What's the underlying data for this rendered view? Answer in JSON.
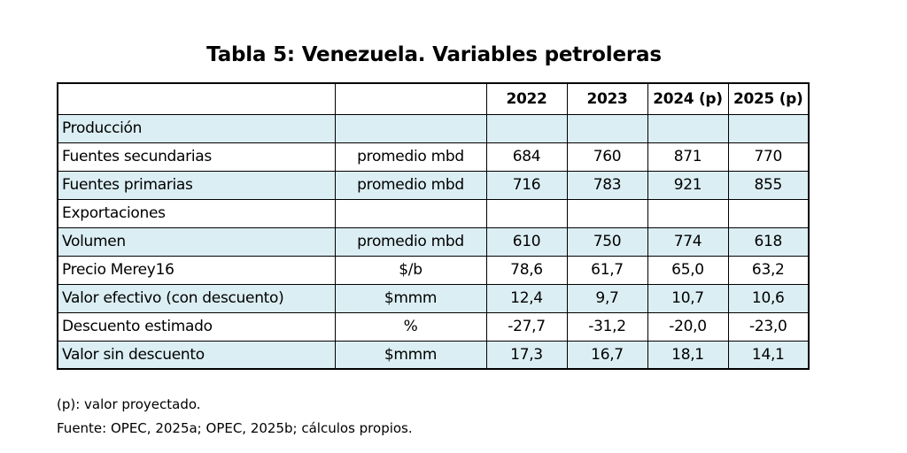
{
  "title": "Tabla 5: Venezuela. Variables petroleras",
  "table": {
    "columns": [
      "",
      "",
      "2022",
      "2023",
      "2024 (p)",
      "2025 (p)"
    ],
    "rows": [
      {
        "label": "Producción",
        "unit": "",
        "values": [
          "",
          "",
          "",
          ""
        ],
        "shaded": true
      },
      {
        "label": "Fuentes secundarias",
        "unit": "promedio mbd",
        "values": [
          "684",
          "760",
          "871",
          "770"
        ],
        "shaded": false
      },
      {
        "label": "Fuentes primarias",
        "unit": "promedio mbd",
        "values": [
          "716",
          "783",
          "921",
          "855"
        ],
        "shaded": true
      },
      {
        "label": "Exportaciones",
        "unit": "",
        "values": [
          "",
          "",
          "",
          ""
        ],
        "shaded": false
      },
      {
        "label": "Volumen",
        "unit": "promedio mbd",
        "values": [
          "610",
          "750",
          "774",
          "618"
        ],
        "shaded": true
      },
      {
        "label": "Precio Merey16",
        "unit": "$/b",
        "values": [
          "78,6",
          "61,7",
          "65,0",
          "63,2"
        ],
        "shaded": false
      },
      {
        "label": "Valor efectivo (con descuento)",
        "unit": "$mmm",
        "values": [
          "12,4",
          "9,7",
          "10,7",
          "10,6"
        ],
        "shaded": true
      },
      {
        "label": "Descuento estimado",
        "unit": "%",
        "values": [
          "-27,7",
          "-31,2",
          "-20,0",
          "-23,0"
        ],
        "shaded": false
      },
      {
        "label": "Valor sin descuento",
        "unit": "$mmm",
        "values": [
          "17,3",
          "16,7",
          "18,1",
          "14,1"
        ],
        "shaded": true
      }
    ]
  },
  "footnotes": {
    "note": "(p): valor proyectado.",
    "source": "Fuente: OPEC, 2025a; OPEC, 2025b; cálculos propios."
  },
  "colors": {
    "shaded_row": "#dbeef3",
    "border": "#000000"
  }
}
